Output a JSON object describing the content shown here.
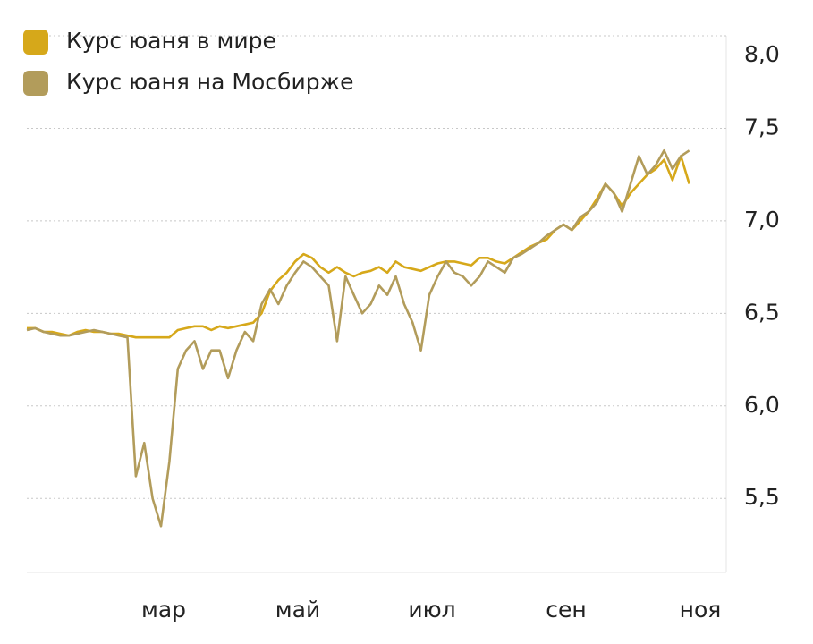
{
  "chart_data": {
    "type": "line",
    "categories": [
      null,
      null,
      null,
      null,
      null,
      null,
      null,
      null,
      null,
      null,
      null,
      null,
      null,
      null,
      null,
      null,
      "мар",
      null,
      null,
      null,
      null,
      null,
      null,
      null,
      null,
      null,
      null,
      null,
      null,
      null,
      null,
      null,
      "май",
      null,
      null,
      null,
      null,
      null,
      null,
      null,
      null,
      null,
      null,
      null,
      null,
      null,
      null,
      null,
      "июл",
      null,
      null,
      null,
      null,
      null,
      null,
      null,
      null,
      null,
      null,
      null,
      null,
      null,
      null,
      null,
      "сен",
      null,
      null,
      null,
      null,
      null,
      null,
      null,
      null,
      null,
      null,
      null,
      null,
      null,
      null,
      null,
      "ноя"
    ],
    "series": [
      {
        "name": "Курс юаня в мире",
        "color": "#d6a81a",
        "values": [
          6.42,
          6.42,
          6.4,
          6.4,
          6.39,
          6.38,
          6.4,
          6.41,
          6.4,
          6.4,
          6.39,
          6.39,
          6.38,
          6.37,
          6.37,
          6.37,
          6.37,
          6.37,
          6.41,
          6.42,
          6.43,
          6.43,
          6.41,
          6.43,
          6.42,
          6.43,
          6.44,
          6.45,
          6.5,
          6.62,
          6.68,
          6.72,
          6.78,
          6.82,
          6.8,
          6.75,
          6.72,
          6.75,
          6.72,
          6.7,
          6.72,
          6.73,
          6.75,
          6.72,
          6.78,
          6.75,
          6.74,
          6.73,
          6.75,
          6.77,
          6.78,
          6.78,
          6.77,
          6.76,
          6.8,
          6.8,
          6.78,
          6.77,
          6.8,
          6.83,
          6.86,
          6.88,
          6.9,
          6.95,
          6.98,
          6.95,
          7.0,
          7.05,
          7.12,
          7.2,
          7.15,
          7.08,
          7.15,
          7.2,
          7.25,
          7.28,
          7.33,
          7.22,
          7.35,
          7.2,
          null
        ]
      },
      {
        "name": "Курс юаня на Мосбирже",
        "color": "#b29c5b",
        "values": [
          6.41,
          6.42,
          6.4,
          6.39,
          6.38,
          6.38,
          6.39,
          6.4,
          6.41,
          6.4,
          6.39,
          6.38,
          6.37,
          5.62,
          5.8,
          5.5,
          5.35,
          5.7,
          6.2,
          6.3,
          6.35,
          6.2,
          6.3,
          6.3,
          6.15,
          6.3,
          6.4,
          6.35,
          6.55,
          6.63,
          6.55,
          6.65,
          6.72,
          6.78,
          6.75,
          6.7,
          6.65,
          6.35,
          6.7,
          6.6,
          6.5,
          6.55,
          6.65,
          6.6,
          6.7,
          6.55,
          6.45,
          6.3,
          6.6,
          6.7,
          6.78,
          6.72,
          6.7,
          6.65,
          6.7,
          6.78,
          6.75,
          6.72,
          6.8,
          6.82,
          6.85,
          6.88,
          6.92,
          6.95,
          6.98,
          6.95,
          7.02,
          7.05,
          7.1,
          7.2,
          7.15,
          7.05,
          7.2,
          7.35,
          7.25,
          7.3,
          7.38,
          7.28,
          7.35,
          7.38,
          null
        ]
      }
    ],
    "ylim": [
      5.1,
      8.0
    ],
    "yticks": [
      {
        "value": 5.5,
        "label": "5,5"
      },
      {
        "value": 6,
        "label": "6,0"
      },
      {
        "value": 6.5,
        "label": "6,5"
      },
      {
        "value": 7,
        "label": "7,0"
      },
      {
        "value": 7.5,
        "label": "7,5"
      },
      {
        "value": 8,
        "label": "8,0"
      }
    ],
    "grid": true,
    "legend": "top-left"
  }
}
